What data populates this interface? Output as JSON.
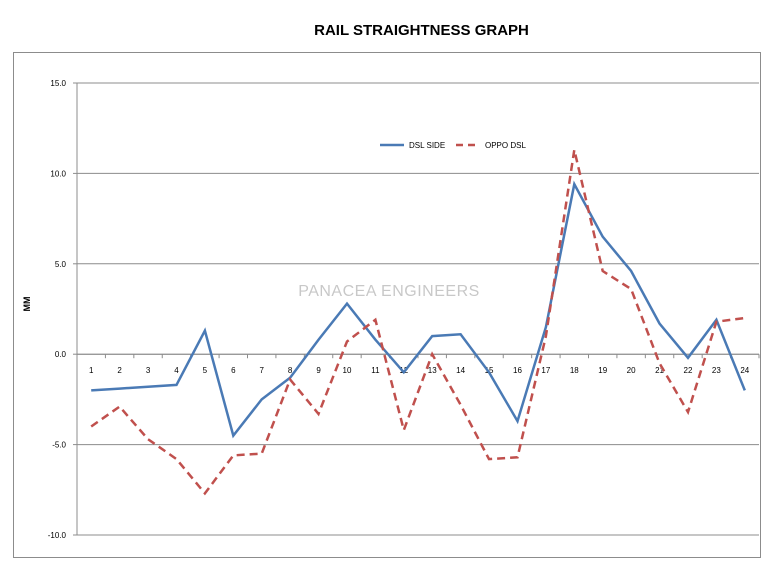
{
  "chart_data": {
    "type": "line",
    "title": "RAIL STRAIGHTNESS GRAPH",
    "ylabel": "MM",
    "xlabel": "",
    "watermark": "PANACEA  ENGINEERS",
    "ylim": [
      -10,
      15
    ],
    "yticks": [
      "15.0",
      "10.0",
      "5.0",
      "0.0",
      "-5.0",
      "-10.0"
    ],
    "ytick_values": [
      15,
      10,
      5,
      0,
      -5,
      -10
    ],
    "categories": [
      "1",
      "2",
      "3",
      "4",
      "5",
      "6",
      "7",
      "8",
      "9",
      "10",
      "11",
      "12",
      "13",
      "14",
      "15",
      "16",
      "17",
      "18",
      "19",
      "20",
      "21",
      "22",
      "23",
      "24"
    ],
    "grid": true,
    "legend_position": "top-center",
    "series": [
      {
        "name": "DSL SIDE",
        "color": "#4a7ab5",
        "style": "solid",
        "values": [
          -2.0,
          -1.9,
          -1.8,
          -1.7,
          1.3,
          -4.5,
          -2.5,
          -1.3,
          0.8,
          2.8,
          0.8,
          -1.0,
          1.0,
          1.1,
          -1.0,
          -3.7,
          1.5,
          9.4,
          6.5,
          4.6,
          1.7,
          -0.2,
          1.9,
          -2.0
        ]
      },
      {
        "name": "OPPO DSL",
        "color": "#c0504d",
        "style": "dashed",
        "values": [
          -4.0,
          -2.9,
          -4.7,
          -5.8,
          -7.7,
          -5.6,
          -5.5,
          -1.4,
          -3.3,
          0.7,
          1.9,
          -4.2,
          0.0,
          -2.8,
          -5.8,
          -5.7,
          1.0,
          11.3,
          4.6,
          3.6,
          -0.5,
          -3.2,
          1.8,
          2.0
        ]
      }
    ]
  }
}
